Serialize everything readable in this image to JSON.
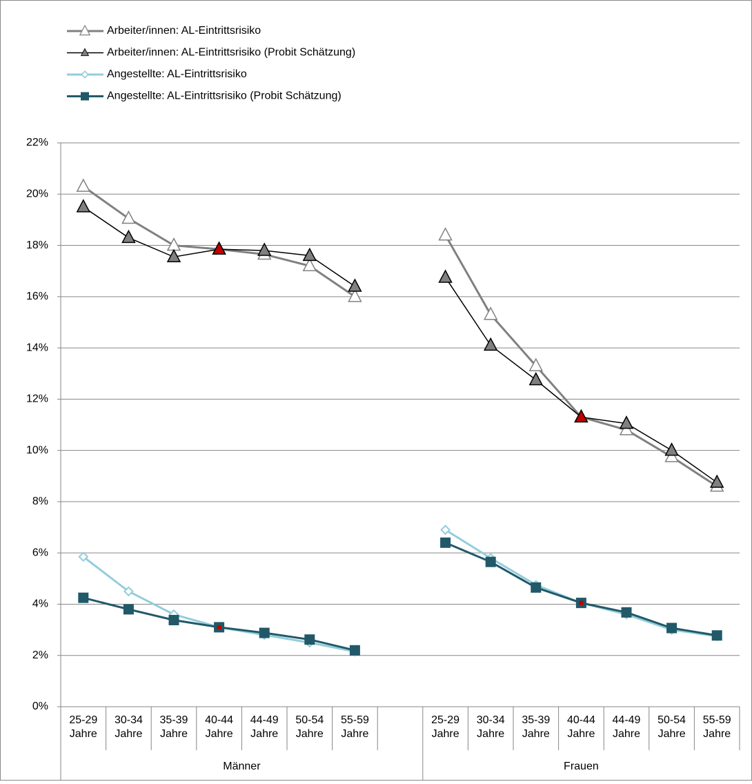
{
  "chart_data": {
    "type": "line",
    "categories": [
      "25-29 Jahre",
      "30-34 Jahre",
      "35-39 Jahre",
      "40-44 Jahre",
      "44-49 Jahre",
      "50-54 Jahre",
      "55-59 Jahre",
      null,
      "25-29 Jahre",
      "30-34 Jahre",
      "35-39 Jahre",
      "40-44 Jahre",
      "44-49 Jahre",
      "50-54 Jahre",
      "55-59 Jahre"
    ],
    "groups": [
      "Männer",
      "Frauen"
    ],
    "series": [
      {
        "name": "Arbeiter/innen: AL-Eintrittsrisiko",
        "color": "#808080",
        "marker": "triangle",
        "marker_fill": "#ffffff",
        "values": [
          20.3,
          19.05,
          18.0,
          17.85,
          17.65,
          17.2,
          16.0,
          null,
          18.4,
          15.3,
          13.3,
          11.3,
          10.8,
          9.75,
          8.6
        ]
      },
      {
        "name": "Arbeiter/innen: AL-Eintrittsrisiko (Probit Schätzung)",
        "color": "#000000",
        "marker": "triangle",
        "marker_fill": "#808080",
        "values": [
          19.5,
          18.3,
          17.55,
          17.85,
          17.8,
          17.6,
          16.4,
          null,
          16.75,
          14.1,
          12.75,
          11.3,
          11.05,
          10.0,
          8.75
        ]
      },
      {
        "name": "Angestellte: AL-Eintrittsrisiko",
        "color": "#92cddc",
        "marker": "diamond",
        "marker_fill": "#ffffff",
        "values": [
          5.85,
          4.5,
          3.6,
          3.1,
          2.8,
          2.5,
          2.15,
          null,
          6.9,
          5.8,
          4.75,
          4.05,
          3.6,
          3.0,
          2.75
        ]
      },
      {
        "name": "Angestellte: AL-Eintrittsrisiko (Probit Schätzung)",
        "color": "#215968",
        "marker": "square",
        "marker_fill": "#215968",
        "values": [
          4.25,
          3.8,
          3.38,
          3.1,
          2.88,
          2.62,
          2.2,
          null,
          6.4,
          5.65,
          4.65,
          4.05,
          3.68,
          3.07,
          2.78
        ]
      }
    ],
    "highlight": {
      "color": "#c00000",
      "series": [
        1,
        3
      ],
      "categories": [
        3,
        11
      ]
    },
    "ylim": [
      0,
      22
    ],
    "yticks": [
      {
        "value": 0,
        "label": "0%"
      },
      {
        "value": 2,
        "label": "2%"
      },
      {
        "value": 4,
        "label": "4%"
      },
      {
        "value": 6,
        "label": "6%"
      },
      {
        "value": 8,
        "label": "8%"
      },
      {
        "value": 10,
        "label": "10%"
      },
      {
        "value": 12,
        "label": "12%"
      },
      {
        "value": 14,
        "label": "14%"
      },
      {
        "value": 16,
        "label": "16%"
      },
      {
        "value": 18,
        "label": "18%"
      },
      {
        "value": 20,
        "label": "20%"
      },
      {
        "value": 22,
        "label": "22%"
      }
    ],
    "grid": true,
    "legend": "top-left"
  }
}
